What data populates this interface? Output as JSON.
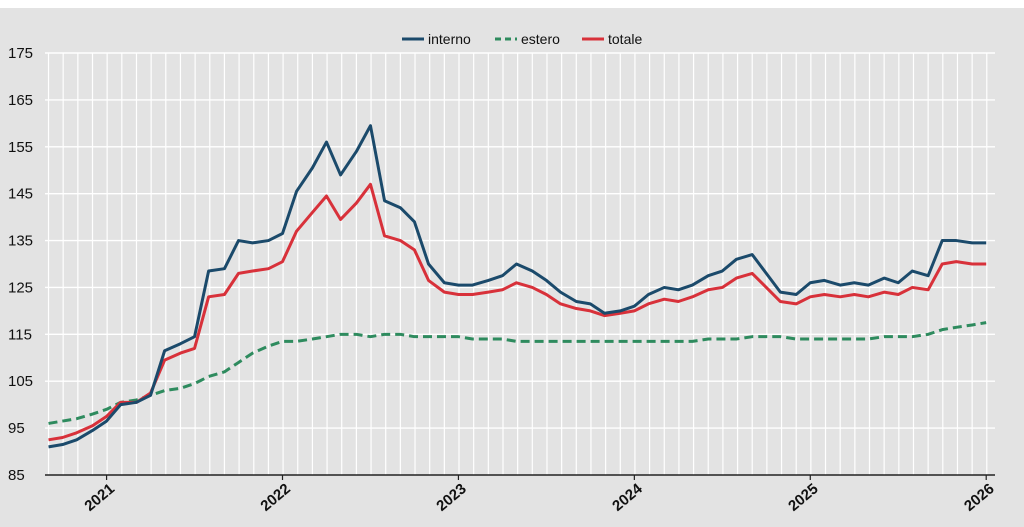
{
  "chart_data": {
    "type": "line",
    "ylim": [
      85,
      175
    ],
    "yticks": [
      85,
      95,
      105,
      115,
      125,
      135,
      145,
      155,
      165,
      175
    ],
    "x_start": 2020.65,
    "x_end": 2026.05,
    "xticks": [
      {
        "value": 2021.0,
        "label": "2021"
      },
      {
        "value": 2022.0,
        "label": "2022"
      },
      {
        "value": 2023.0,
        "label": "2023"
      },
      {
        "value": 2024.0,
        "label": "2024"
      },
      {
        "value": 2025.0,
        "label": "2025"
      },
      {
        "value": 2026.0,
        "label": "2026"
      }
    ],
    "grid": true,
    "legend_position": "top-center",
    "colors": {
      "interno": "#1b4a6b",
      "estero": "#2e8b5e",
      "totale": "#d8313a",
      "plot_bg": "#e3e3e3",
      "grid": "#ffffff"
    },
    "series": [
      {
        "name": "interno",
        "style": "solid",
        "points": [
          [
            2020.67,
            91
          ],
          [
            2020.75,
            91.5
          ],
          [
            2020.83,
            92.5
          ],
          [
            2020.92,
            94.5
          ],
          [
            2021.0,
            96.5
          ],
          [
            2021.08,
            100
          ],
          [
            2021.17,
            100.5
          ],
          [
            2021.25,
            102
          ],
          [
            2021.33,
            111.5
          ],
          [
            2021.42,
            113
          ],
          [
            2021.5,
            114.5
          ],
          [
            2021.58,
            128.5
          ],
          [
            2021.67,
            129
          ],
          [
            2021.75,
            135
          ],
          [
            2021.83,
            134.5
          ],
          [
            2021.92,
            135
          ],
          [
            2022.0,
            136.5
          ],
          [
            2022.08,
            145.5
          ],
          [
            2022.17,
            150.5
          ],
          [
            2022.25,
            156
          ],
          [
            2022.33,
            149
          ],
          [
            2022.42,
            154
          ],
          [
            2022.5,
            159.5
          ],
          [
            2022.58,
            143.5
          ],
          [
            2022.67,
            142
          ],
          [
            2022.75,
            139
          ],
          [
            2022.83,
            130
          ],
          [
            2022.92,
            126
          ],
          [
            2023.0,
            125.5
          ],
          [
            2023.08,
            125.5
          ],
          [
            2023.17,
            126.5
          ],
          [
            2023.25,
            127.5
          ],
          [
            2023.33,
            130
          ],
          [
            2023.42,
            128.5
          ],
          [
            2023.5,
            126.5
          ],
          [
            2023.58,
            124
          ],
          [
            2023.67,
            122
          ],
          [
            2023.75,
            121.5
          ],
          [
            2023.83,
            119.5
          ],
          [
            2023.92,
            120
          ],
          [
            2024.0,
            121
          ],
          [
            2024.08,
            123.5
          ],
          [
            2024.17,
            125
          ],
          [
            2024.25,
            124.5
          ],
          [
            2024.33,
            125.5
          ],
          [
            2024.42,
            127.5
          ],
          [
            2024.5,
            128.5
          ],
          [
            2024.58,
            131
          ],
          [
            2024.67,
            132
          ],
          [
            2024.75,
            128
          ],
          [
            2024.83,
            124
          ],
          [
            2024.92,
            123.5
          ],
          [
            2025.0,
            126
          ],
          [
            2025.08,
            126.5
          ],
          [
            2025.17,
            125.5
          ],
          [
            2025.25,
            126
          ],
          [
            2025.33,
            125.5
          ],
          [
            2025.42,
            127
          ],
          [
            2025.5,
            126
          ],
          [
            2025.58,
            128.5
          ],
          [
            2025.67,
            127.5
          ],
          [
            2025.75,
            135
          ],
          [
            2025.83,
            135
          ],
          [
            2025.92,
            134.5
          ],
          [
            2026.0,
            134.5
          ]
        ]
      },
      {
        "name": "estero",
        "style": "dashed",
        "points": [
          [
            2020.67,
            96
          ],
          [
            2020.75,
            96.5
          ],
          [
            2020.83,
            97
          ],
          [
            2020.92,
            98
          ],
          [
            2021.0,
            99
          ],
          [
            2021.08,
            100.5
          ],
          [
            2021.17,
            101
          ],
          [
            2021.25,
            102
          ],
          [
            2021.33,
            103
          ],
          [
            2021.42,
            103.5
          ],
          [
            2021.5,
            104.5
          ],
          [
            2021.58,
            106
          ],
          [
            2021.67,
            107
          ],
          [
            2021.75,
            109
          ],
          [
            2021.83,
            111
          ],
          [
            2021.92,
            112.5
          ],
          [
            2022.0,
            113.5
          ],
          [
            2022.08,
            113.5
          ],
          [
            2022.17,
            114
          ],
          [
            2022.25,
            114.5
          ],
          [
            2022.33,
            115
          ],
          [
            2022.42,
            115
          ],
          [
            2022.5,
            114.5
          ],
          [
            2022.58,
            115
          ],
          [
            2022.67,
            115
          ],
          [
            2022.75,
            114.5
          ],
          [
            2022.83,
            114.5
          ],
          [
            2022.92,
            114.5
          ],
          [
            2023.0,
            114.5
          ],
          [
            2023.08,
            114
          ],
          [
            2023.17,
            114
          ],
          [
            2023.25,
            114
          ],
          [
            2023.33,
            113.5
          ],
          [
            2023.42,
            113.5
          ],
          [
            2023.5,
            113.5
          ],
          [
            2023.58,
            113.5
          ],
          [
            2023.67,
            113.5
          ],
          [
            2023.75,
            113.5
          ],
          [
            2023.83,
            113.5
          ],
          [
            2023.92,
            113.5
          ],
          [
            2024.0,
            113.5
          ],
          [
            2024.08,
            113.5
          ],
          [
            2024.17,
            113.5
          ],
          [
            2024.25,
            113.5
          ],
          [
            2024.33,
            113.5
          ],
          [
            2024.42,
            114
          ],
          [
            2024.5,
            114
          ],
          [
            2024.58,
            114
          ],
          [
            2024.67,
            114.5
          ],
          [
            2024.75,
            114.5
          ],
          [
            2024.83,
            114.5
          ],
          [
            2024.92,
            114
          ],
          [
            2025.0,
            114
          ],
          [
            2025.08,
            114
          ],
          [
            2025.17,
            114
          ],
          [
            2025.25,
            114
          ],
          [
            2025.33,
            114
          ],
          [
            2025.42,
            114.5
          ],
          [
            2025.5,
            114.5
          ],
          [
            2025.58,
            114.5
          ],
          [
            2025.67,
            115
          ],
          [
            2025.75,
            116
          ],
          [
            2025.83,
            116.5
          ],
          [
            2025.92,
            117
          ],
          [
            2026.0,
            117.5
          ]
        ]
      },
      {
        "name": "totale",
        "style": "solid",
        "points": [
          [
            2020.67,
            92.5
          ],
          [
            2020.75,
            93
          ],
          [
            2020.83,
            94
          ],
          [
            2020.92,
            95.5
          ],
          [
            2021.0,
            97.5
          ],
          [
            2021.08,
            100.5
          ],
          [
            2021.17,
            100.5
          ],
          [
            2021.25,
            102.5
          ],
          [
            2021.33,
            109.5
          ],
          [
            2021.42,
            111
          ],
          [
            2021.5,
            112
          ],
          [
            2021.58,
            123
          ],
          [
            2021.67,
            123.5
          ],
          [
            2021.75,
            128
          ],
          [
            2021.83,
            128.5
          ],
          [
            2021.92,
            129
          ],
          [
            2022.0,
            130.5
          ],
          [
            2022.08,
            137
          ],
          [
            2022.17,
            141
          ],
          [
            2022.25,
            144.5
          ],
          [
            2022.33,
            139.5
          ],
          [
            2022.42,
            143
          ],
          [
            2022.5,
            147
          ],
          [
            2022.58,
            136
          ],
          [
            2022.67,
            135
          ],
          [
            2022.75,
            133
          ],
          [
            2022.83,
            126.5
          ],
          [
            2022.92,
            124
          ],
          [
            2023.0,
            123.5
          ],
          [
            2023.08,
            123.5
          ],
          [
            2023.17,
            124
          ],
          [
            2023.25,
            124.5
          ],
          [
            2023.33,
            126
          ],
          [
            2023.42,
            125
          ],
          [
            2023.5,
            123.5
          ],
          [
            2023.58,
            121.5
          ],
          [
            2023.67,
            120.5
          ],
          [
            2023.75,
            120
          ],
          [
            2023.83,
            119
          ],
          [
            2023.92,
            119.5
          ],
          [
            2024.0,
            120
          ],
          [
            2024.08,
            121.5
          ],
          [
            2024.17,
            122.5
          ],
          [
            2024.25,
            122
          ],
          [
            2024.33,
            123
          ],
          [
            2024.42,
            124.5
          ],
          [
            2024.5,
            125
          ],
          [
            2024.58,
            127
          ],
          [
            2024.67,
            128
          ],
          [
            2024.75,
            125
          ],
          [
            2024.83,
            122
          ],
          [
            2024.92,
            121.5
          ],
          [
            2025.0,
            123
          ],
          [
            2025.08,
            123.5
          ],
          [
            2025.17,
            123
          ],
          [
            2025.25,
            123.5
          ],
          [
            2025.33,
            123
          ],
          [
            2025.42,
            124
          ],
          [
            2025.5,
            123.5
          ],
          [
            2025.58,
            125
          ],
          [
            2025.67,
            124.5
          ],
          [
            2025.75,
            130
          ],
          [
            2025.83,
            130.5
          ],
          [
            2025.92,
            130
          ],
          [
            2026.0,
            130
          ]
        ]
      }
    ]
  }
}
